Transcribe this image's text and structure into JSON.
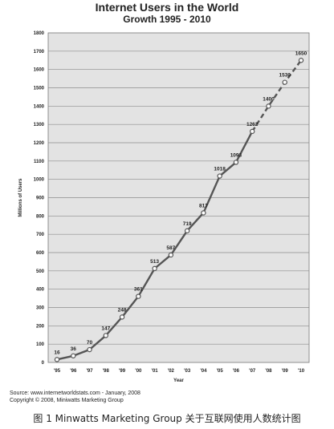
{
  "chart_data": {
    "type": "line",
    "title": "Internet Users in the World",
    "subtitle": "Growth 1995 - 2010",
    "xlabel": "Year",
    "ylabel": "Millions of Users",
    "categories": [
      "'95",
      "'96",
      "'97",
      "'98",
      "'99",
      "'00",
      "'01",
      "'02",
      "'03",
      "'04",
      "'05",
      "'06",
      "'07",
      "'08",
      "'09",
      "'10"
    ],
    "series": [
      {
        "values": [
          16,
          36,
          70,
          147,
          248,
          361,
          513,
          587,
          719,
          817,
          1018,
          1093,
          1262,
          1400,
          1530,
          1650
        ],
        "labels": [
          "16",
          "36",
          "70",
          "147",
          "248",
          "361",
          "513",
          "587",
          "719",
          "817",
          "1018",
          "1093",
          "1262",
          "1400",
          "1530",
          "1650"
        ],
        "projected_from_index": 12,
        "color": "#555555"
      }
    ],
    "ylim": [
      0,
      1800
    ],
    "yticks": [
      0,
      100,
      200,
      300,
      400,
      500,
      600,
      700,
      800,
      900,
      1000,
      1100,
      1200,
      1300,
      1400,
      1500,
      1600,
      1700,
      1800
    ],
    "grid": true,
    "plot_background": "#e3e3e3",
    "gridline_color": "#8c8c8c"
  },
  "source_lines": [
    "Source: www.internetworldstats.com - January, 2008",
    "Copyright © 2008, Miniwatts Marketing Group"
  ],
  "caption": "图 1   Minwatts Marketing Group 关于互联网使用人数统计图"
}
